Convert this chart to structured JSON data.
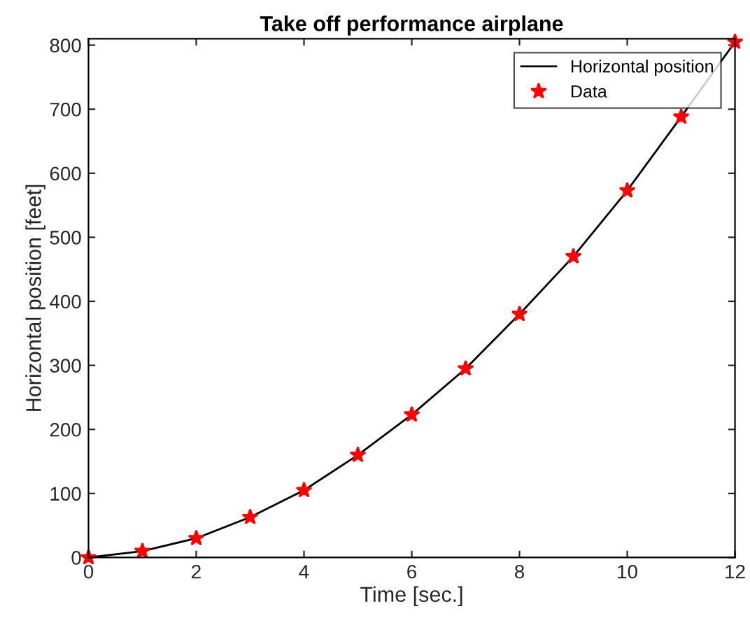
{
  "chart_data": {
    "type": "line",
    "title": "Take off performance airplane",
    "xlabel": "Time [sec.]",
    "ylabel": "Horizontal position [feet]",
    "x": [
      0,
      1,
      2,
      3,
      4,
      5,
      6,
      7,
      8,
      9,
      10,
      11,
      12
    ],
    "series": [
      {
        "name": "Horizontal position",
        "color": "#000000",
        "marker": "none",
        "values": [
          0,
          10,
          30,
          63,
          105,
          160,
          223,
          295,
          380,
          470,
          573,
          688,
          805
        ]
      },
      {
        "name": "Data",
        "type": "scatter",
        "color": "#ff0000",
        "marker": "star",
        "values": [
          0,
          10,
          30,
          63,
          105,
          160,
          223,
          295,
          380,
          470,
          573,
          688,
          805
        ]
      }
    ],
    "xlim": [
      0,
      12
    ],
    "ylim": [
      0,
      810
    ],
    "xticks": [
      0,
      2,
      4,
      6,
      8,
      10,
      12
    ],
    "yticks": [
      0,
      100,
      200,
      300,
      400,
      500,
      600,
      700,
      800
    ],
    "grid": false,
    "legend": "top right"
  }
}
